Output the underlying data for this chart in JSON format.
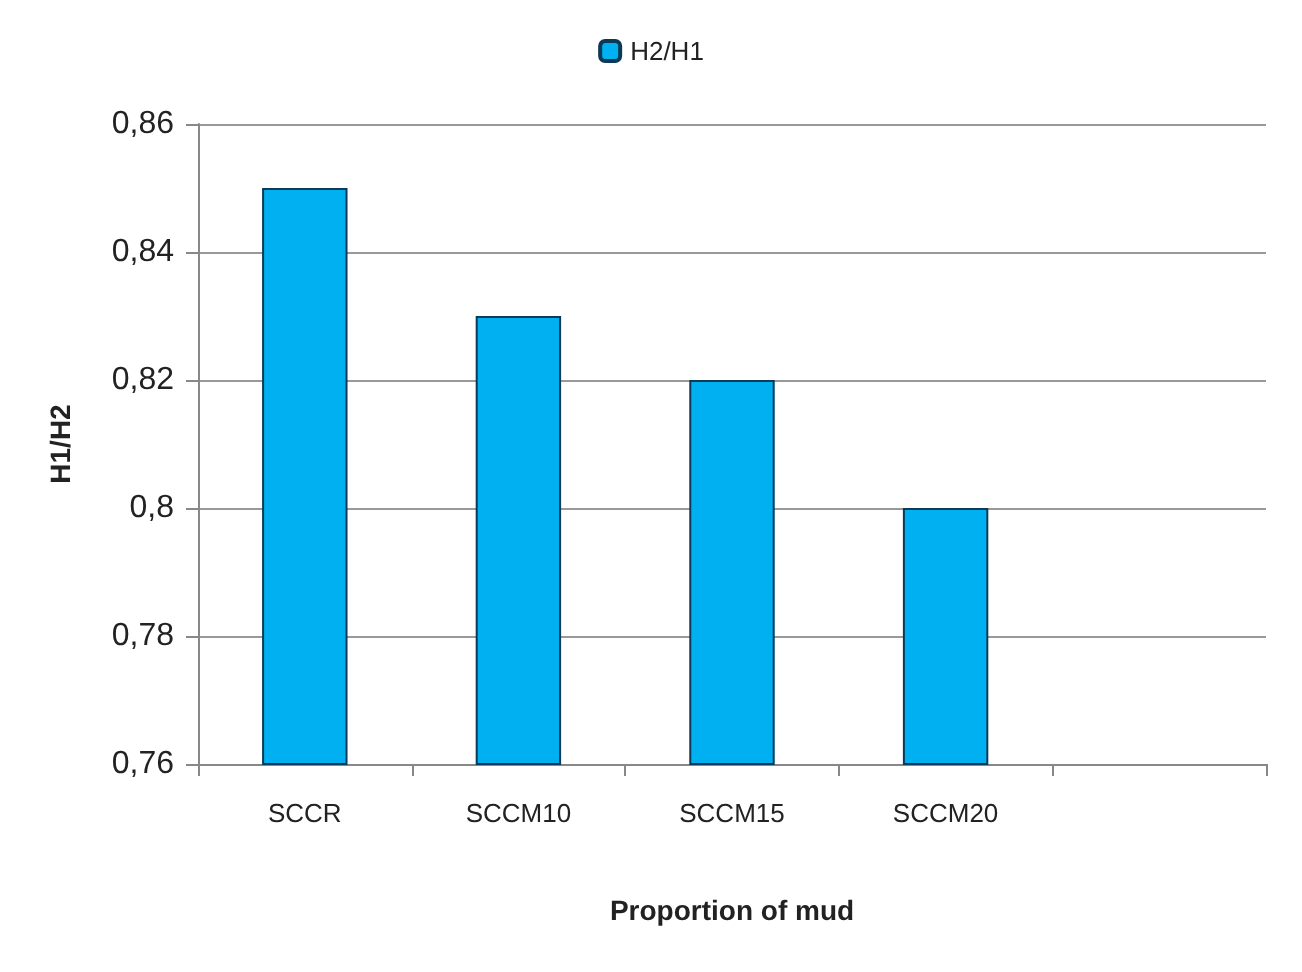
{
  "chart_data": {
    "type": "bar",
    "xlabel": "Proportion of mud",
    "ylabel": "H1/H2",
    "categories": [
      "SCCR",
      "SCCM10",
      "SCCM15",
      "SCCM20",
      null
    ],
    "series": [
      {
        "name": "H2/H1",
        "color": "#00b0f0",
        "values": [
          0.85,
          0.83,
          0.82,
          0.8,
          null
        ]
      }
    ],
    "ylim": [
      0.76,
      0.86
    ],
    "yticks": [
      {
        "value": 0.76,
        "label": "0,76"
      },
      {
        "value": 0.78,
        "label": "0,78"
      },
      {
        "value": 0.8,
        "label": "0,8"
      },
      {
        "value": 0.82,
        "label": "0,82"
      },
      {
        "value": 0.84,
        "label": "0,84"
      },
      {
        "value": 0.86,
        "label": "0,86"
      }
    ],
    "grid": "y",
    "legend": "top"
  }
}
